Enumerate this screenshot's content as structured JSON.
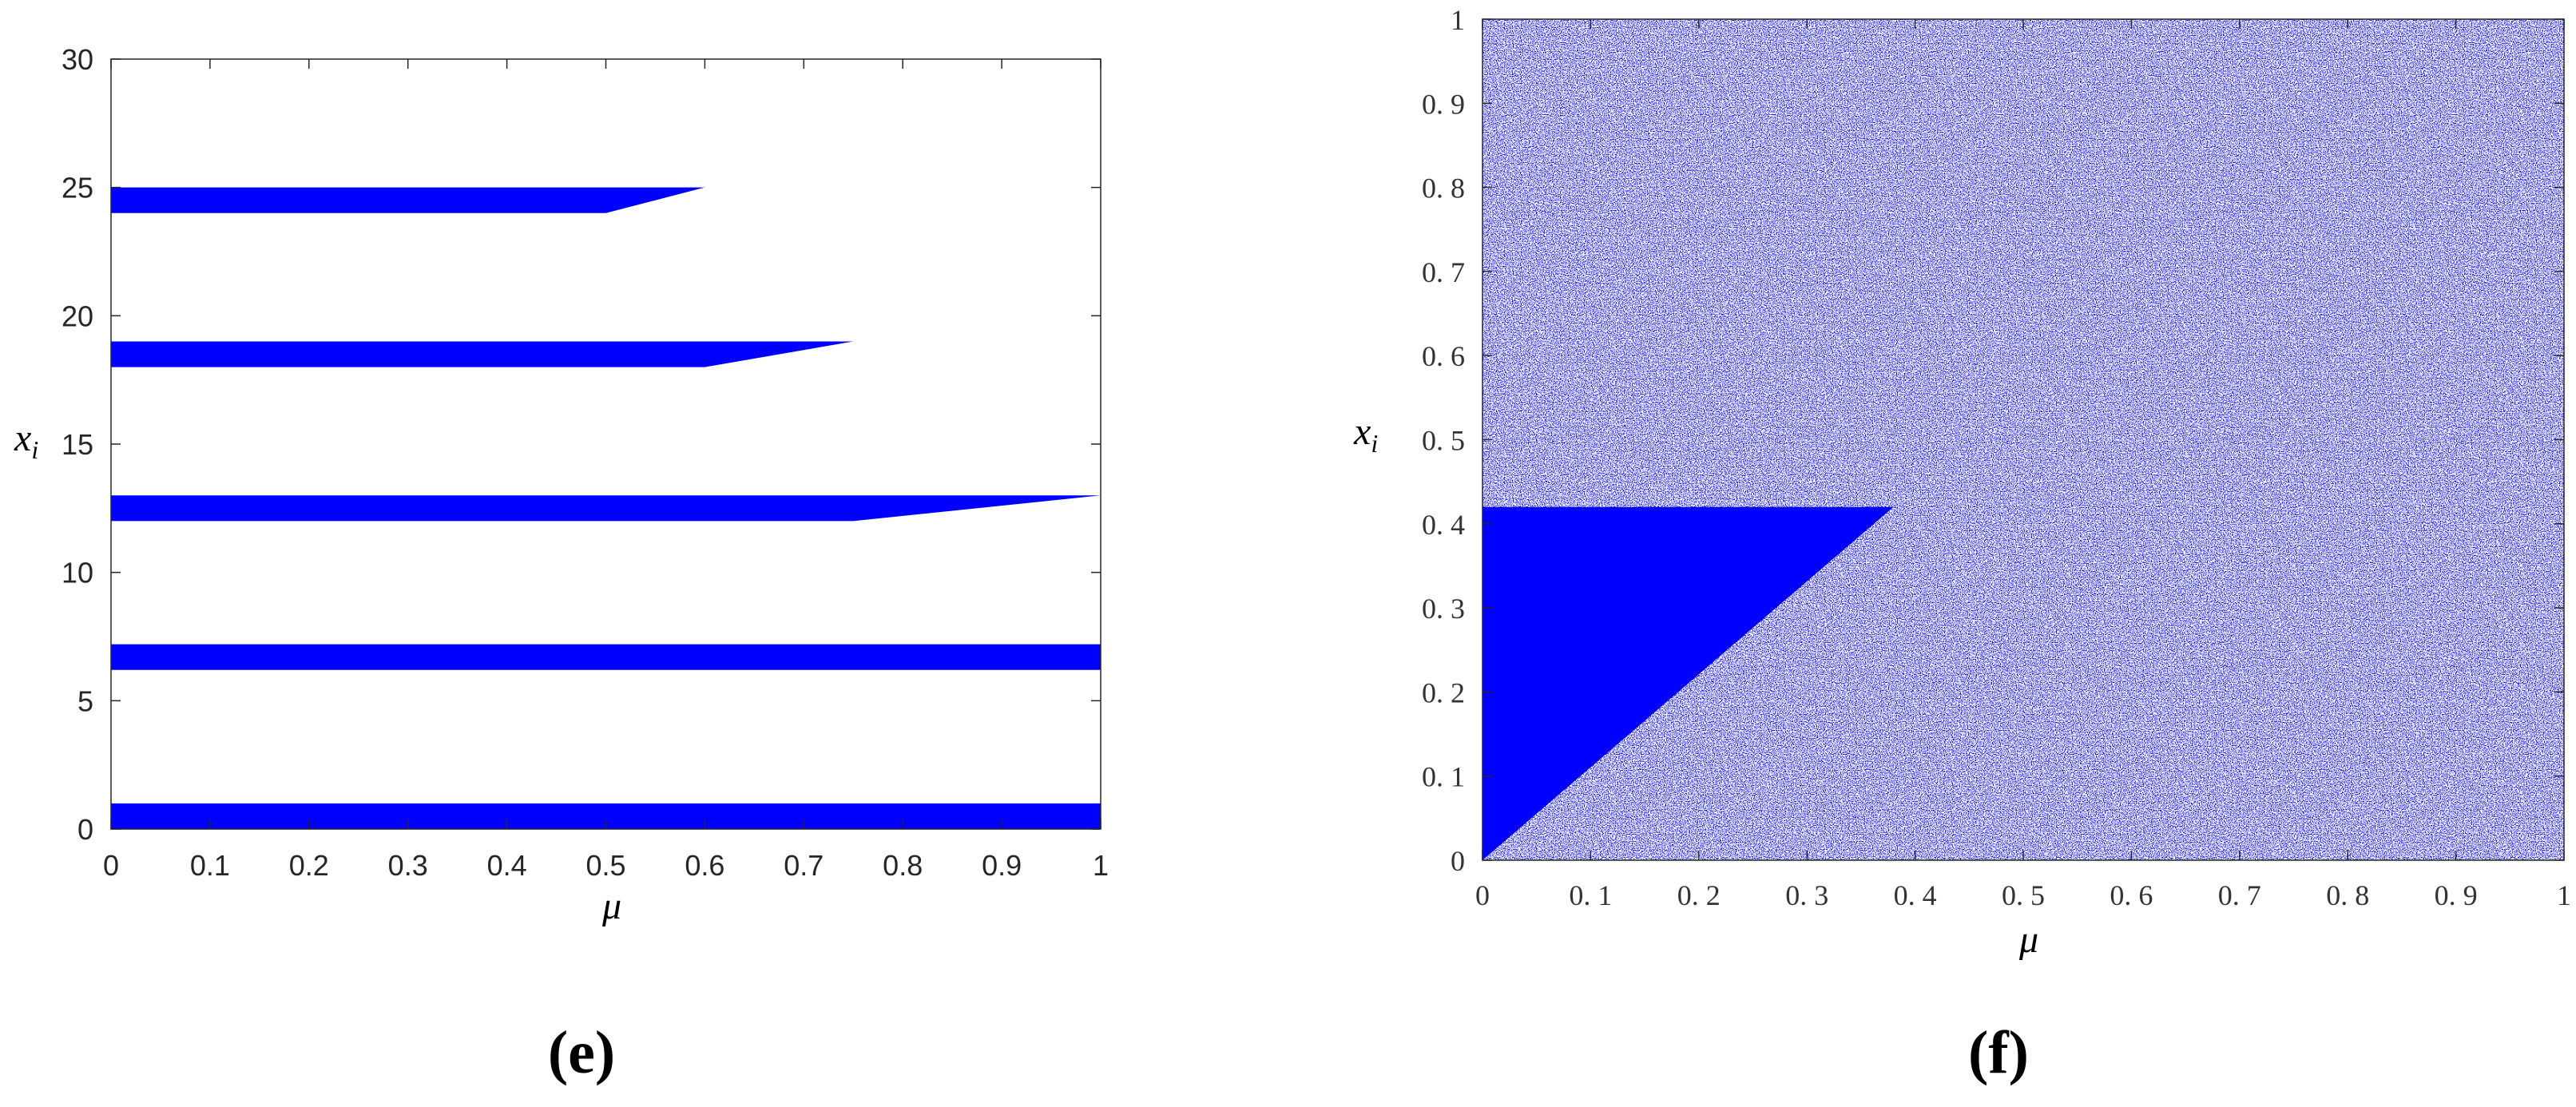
{
  "panels": [
    {
      "id": "e",
      "caption": "(e)",
      "ylabel_main": "x",
      "ylabel_sub": "i",
      "xlabel": "μ",
      "xticks": [
        "0",
        "0.1",
        "0.2",
        "0.3",
        "0.4",
        "0.5",
        "0.6",
        "0.7",
        "0.8",
        "0.9",
        "1"
      ],
      "yticks": [
        "0",
        "5",
        "10",
        "15",
        "20",
        "25",
        "30"
      ]
    },
    {
      "id": "f",
      "caption": "(f)",
      "ylabel_main": "x",
      "ylabel_sub": "i",
      "xlabel": "μ",
      "xticks": [
        "0",
        "0. 1",
        "0. 2",
        "0. 3",
        "0. 4",
        "0. 5",
        "0. 6",
        "0. 7",
        "0. 8",
        "0. 9",
        "1"
      ],
      "yticks": [
        "0",
        "0. 1",
        "0. 2",
        "0. 3",
        "0. 4",
        "0. 5",
        "0. 6",
        "0. 7",
        "0. 8",
        "0. 9",
        "1"
      ]
    }
  ],
  "chart_data": [
    {
      "type": "scatter",
      "panel": "e",
      "xlabel": "μ",
      "ylabel": "x_i",
      "xlim": [
        0,
        1
      ],
      "ylim": [
        0,
        30
      ],
      "grid": false,
      "color": "#0000ff",
      "bands": [
        {
          "x_start": 0,
          "x_flat_end": 1.0,
          "x_end": 1.0,
          "y_low": 0.0,
          "y_high": 1.0
        },
        {
          "x_start": 0,
          "x_flat_end": 1.0,
          "x_end": 1.0,
          "y_low": 6.2,
          "y_high": 7.2
        },
        {
          "x_start": 0,
          "x_flat_end": 0.75,
          "x_end": 1.0,
          "y_low": 12.0,
          "y_high": 13.0
        },
        {
          "x_start": 0,
          "x_flat_end": 0.6,
          "x_end": 0.75,
          "y_low": 18.0,
          "y_high": 19.0
        },
        {
          "x_start": 0,
          "x_flat_end": 0.5,
          "x_end": 0.6,
          "y_low": 24.0,
          "y_high": 25.0
        }
      ]
    },
    {
      "type": "scatter",
      "panel": "f",
      "xlabel": "μ",
      "ylabel": "x_i",
      "xlim": [
        0,
        1
      ],
      "ylim": [
        0,
        1
      ],
      "grid": false,
      "color": "#0000ff",
      "density": "dense",
      "solid_wedge_vertices": [
        [
          0,
          0
        ],
        [
          0,
          0.42
        ],
        [
          0.38,
          0.42
        ]
      ]
    }
  ]
}
